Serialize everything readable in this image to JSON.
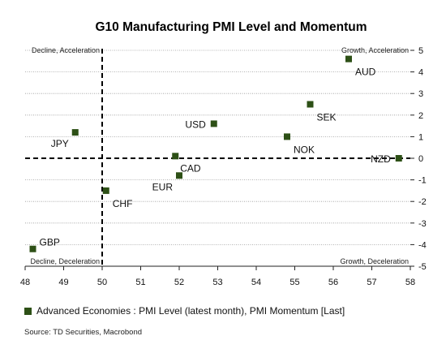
{
  "chart_data": {
    "type": "scatter",
    "title": "G10 Manufacturing PMI Level and Momentum",
    "xlabel": "",
    "ylabel": "",
    "xlim": [
      48,
      58
    ],
    "ylim": [
      -5,
      5
    ],
    "x_ticks": [
      48,
      49,
      50,
      51,
      52,
      53,
      54,
      55,
      56,
      57,
      58
    ],
    "y_ticks": [
      5,
      4,
      3,
      2,
      1,
      0,
      -1,
      -2,
      -3,
      -4,
      -5
    ],
    "grid": "horizontal dotted",
    "y_axis_side": "right",
    "x_divider": 50,
    "y_divider": 0,
    "quadrant_labels": {
      "top_left": "Decline, Acceleration",
      "top_right": "Growth, Acceleration",
      "bottom_left": "Decline, Deceleration",
      "bottom_right": "Growth, Deceleration"
    },
    "series": [
      {
        "name": "Advanced Economies : PMI Level (latest month), PMI Momentum [Last]",
        "color": "#2d5016",
        "points": [
          {
            "label": "AUD",
            "x": 56.4,
            "y": 4.6,
            "label_pos": "below-right"
          },
          {
            "label": "SEK",
            "x": 55.4,
            "y": 2.5,
            "label_pos": "below-right"
          },
          {
            "label": "USD",
            "x": 52.9,
            "y": 1.6,
            "label_pos": "left"
          },
          {
            "label": "NOK",
            "x": 54.8,
            "y": 1.0,
            "label_pos": "below-right"
          },
          {
            "label": "JPY",
            "x": 49.3,
            "y": 1.2,
            "label_pos": "below-left"
          },
          {
            "label": "CAD",
            "x": 51.9,
            "y": 0.1,
            "label_pos": "below"
          },
          {
            "label": "NZD",
            "x": 57.7,
            "y": 0.0,
            "label_pos": "left"
          },
          {
            "label": "EUR",
            "x": 52.0,
            "y": -0.8,
            "label_pos": "below-left"
          },
          {
            "label": "CHF",
            "x": 50.1,
            "y": -1.5,
            "label_pos": "below-right"
          },
          {
            "label": "GBP",
            "x": 48.2,
            "y": -4.2,
            "label_pos": "above-right"
          }
        ]
      }
    ]
  },
  "legend": {
    "label": "Advanced Economies : PMI Level (latest month), PMI Momentum [Last]"
  },
  "source": "Source: TD Securities, Macrobond"
}
